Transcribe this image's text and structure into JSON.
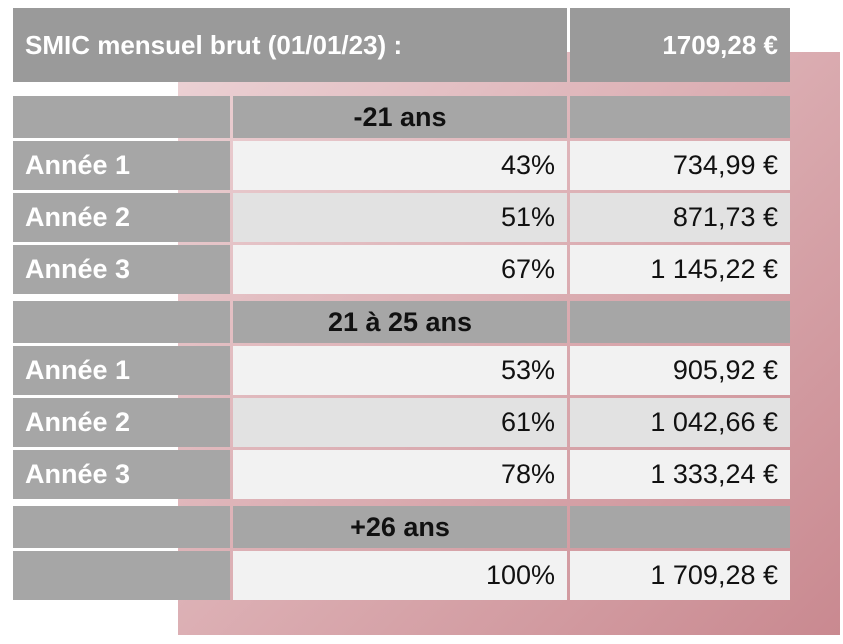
{
  "header": {
    "label": "SMIC mensuel brut (01/01/23) :",
    "value": "1709,28 €"
  },
  "groups": [
    {
      "title": "-21 ans",
      "rows": [
        {
          "label": "Année 1",
          "percent": "43%",
          "amount": "734,99 €"
        },
        {
          "label": "Année 2",
          "percent": "51%",
          "amount": "871,73 €"
        },
        {
          "label": "Année 3",
          "percent": "67%",
          "amount": "1 145,22 €"
        }
      ]
    },
    {
      "title": "21 à 25 ans",
      "rows": [
        {
          "label": "Année 1",
          "percent": "53%",
          "amount": "905,92 €"
        },
        {
          "label": "Année 2",
          "percent": "61%",
          "amount": "1 042,66 €"
        },
        {
          "label": "Année 3",
          "percent": "78%",
          "amount": "1 333,24 €"
        }
      ]
    },
    {
      "title": "+26 ans",
      "rows": [
        {
          "percent": "100%",
          "amount": "1 709,28 €"
        }
      ]
    }
  ]
}
